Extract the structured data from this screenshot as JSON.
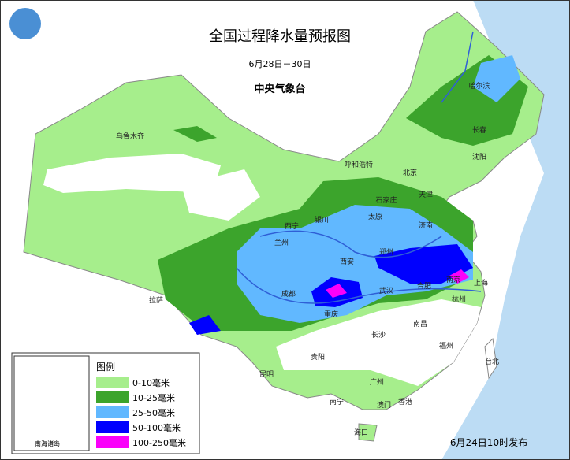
{
  "header": {
    "title": "全国过程降水量预报图",
    "date": "6月28日－30日",
    "issuer": "中央气象台"
  },
  "legend": {
    "title": "图例",
    "items": [
      {
        "label": "0-10毫米",
        "color": "#a6ee8c"
      },
      {
        "label": "10-25毫米",
        "color": "#3ca42c"
      },
      {
        "label": "25-50毫米",
        "color": "#61b8ff"
      },
      {
        "label": "50-100毫米",
        "color": "#0000fe"
      },
      {
        "label": "100-250毫米",
        "color": "#fa00fa"
      }
    ]
  },
  "inset": {
    "label": "南海诸岛"
  },
  "cities": [
    "哈尔滨",
    "长春",
    "沈阳",
    "乌鲁木齐",
    "呼和浩特",
    "北京",
    "天津",
    "石家庄",
    "太原",
    "济南",
    "银川",
    "西宁",
    "兰州",
    "郑州",
    "西安",
    "合肥",
    "南京",
    "上海",
    "成都",
    "武汉",
    "杭州",
    "拉萨",
    "重庆",
    "南昌",
    "长沙",
    "福州",
    "贵阳",
    "昆明",
    "台北",
    "广州",
    "南宁",
    "澳门",
    "香港",
    "海口"
  ],
  "footer": {
    "issued": "6月24日10时发布"
  }
}
